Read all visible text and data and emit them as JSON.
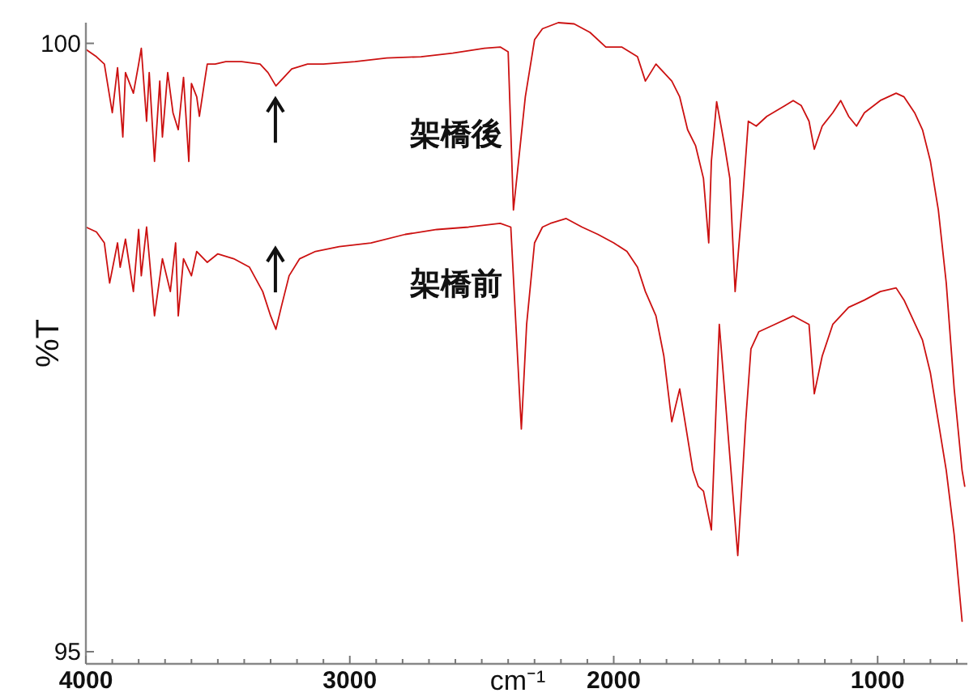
{
  "chart_data": {
    "type": "line",
    "xlabel": "cm⁻¹",
    "ylabel": "%T",
    "xlim": [
      4000,
      660
    ],
    "ylim": [
      94.9,
      100.17
    ],
    "xticks": [
      4000,
      {
        "value": 3900,
        "label": null
      },
      {
        "value": 3800,
        "label": null
      },
      {
        "value": 3700,
        "label": null
      },
      {
        "value": 3600,
        "label": null
      },
      {
        "value": 3500,
        "label": null
      },
      {
        "value": 3400,
        "label": null
      },
      {
        "value": 3300,
        "label": null
      },
      {
        "value": 3200,
        "label": null
      },
      {
        "value": 3100,
        "label": null
      },
      3000,
      {
        "value": 2900,
        "label": null
      },
      {
        "value": 2800,
        "label": null
      },
      {
        "value": 2700,
        "label": null
      },
      {
        "value": 2600,
        "label": null
      },
      {
        "value": 2500,
        "label": null
      },
      {
        "value": 2400,
        "label": null
      },
      {
        "value": 2300,
        "label": null
      },
      {
        "value": 2200,
        "label": null
      },
      {
        "value": 2100,
        "label": null
      },
      2000,
      {
        "value": 1900,
        "label": null
      },
      {
        "value": 1800,
        "label": null
      },
      {
        "value": 1700,
        "label": null
      },
      {
        "value": 1600,
        "label": null
      },
      {
        "value": 1500,
        "label": null
      },
      {
        "value": 1400,
        "label": null
      },
      {
        "value": 1300,
        "label": null
      },
      {
        "value": 1200,
        "label": null
      },
      {
        "value": 1100,
        "label": null
      },
      1000,
      {
        "value": 900,
        "label": null
      },
      {
        "value": 800,
        "label": null
      },
      {
        "value": 700,
        "label": null
      }
    ],
    "yticks": [
      95,
      100
    ],
    "grid": false,
    "legend": false,
    "marker": "none",
    "line_style": "solid",
    "series": [
      {
        "name": "架橋後",
        "color": "#cc1111",
        "x": [
          4000,
          3960,
          3930,
          3900,
          3880,
          3860,
          3850,
          3820,
          3800,
          3790,
          3770,
          3760,
          3740,
          3720,
          3710,
          3690,
          3670,
          3650,
          3630,
          3610,
          3600,
          3580,
          3570,
          3550,
          3540,
          3510,
          3470,
          3410,
          3340,
          3310,
          3280,
          3250,
          3220,
          3160,
          3100,
          2980,
          2860,
          2730,
          2610,
          2490,
          2430,
          2400,
          2380,
          2335,
          2300,
          2270,
          2210,
          2150,
          2090,
          2030,
          1970,
          1910,
          1880,
          1840,
          1780,
          1750,
          1720,
          1690,
          1660,
          1640,
          1630,
          1610,
          1580,
          1560,
          1540,
          1510,
          1490,
          1460,
          1420,
          1350,
          1320,
          1290,
          1260,
          1240,
          1210,
          1170,
          1140,
          1110,
          1080,
          1050,
          990,
          930,
          900,
          860,
          830,
          800,
          770,
          740,
          710,
          680,
          670
        ],
        "values": [
          99.95,
          99.89,
          99.83,
          99.43,
          99.8,
          99.23,
          99.76,
          99.59,
          99.83,
          99.96,
          99.36,
          99.76,
          99.03,
          99.69,
          99.23,
          99.76,
          99.43,
          99.29,
          99.72,
          99.03,
          99.67,
          99.56,
          99.4,
          99.69,
          99.83,
          99.83,
          99.85,
          99.85,
          99.83,
          99.76,
          99.65,
          99.72,
          99.79,
          99.83,
          99.83,
          99.85,
          99.88,
          99.89,
          99.92,
          99.96,
          99.97,
          99.93,
          98.63,
          99.56,
          100.03,
          100.12,
          100.17,
          100.16,
          100.09,
          99.97,
          99.97,
          99.89,
          99.69,
          99.83,
          99.69,
          99.56,
          99.29,
          99.16,
          98.89,
          98.36,
          99.03,
          99.52,
          99.16,
          98.89,
          97.96,
          98.76,
          99.36,
          99.32,
          99.4,
          99.49,
          99.53,
          99.49,
          99.36,
          99.13,
          99.32,
          99.43,
          99.53,
          99.4,
          99.32,
          99.43,
          99.53,
          99.59,
          99.56,
          99.43,
          99.29,
          99.03,
          98.63,
          98.03,
          97.16,
          96.49,
          96.36
        ]
      },
      {
        "name": "架橋前",
        "color": "#cc1111",
        "x": [
          4000,
          3960,
          3930,
          3910,
          3880,
          3870,
          3850,
          3820,
          3800,
          3790,
          3770,
          3740,
          3710,
          3680,
          3660,
          3650,
          3630,
          3600,
          3580,
          3540,
          3500,
          3440,
          3380,
          3330,
          3300,
          3280,
          3260,
          3230,
          3190,
          3130,
          3040,
          2920,
          2790,
          2670,
          2550,
          2430,
          2390,
          2350,
          2330,
          2300,
          2270,
          2240,
          2180,
          2120,
          2060,
          2000,
          1950,
          1910,
          1880,
          1840,
          1810,
          1780,
          1750,
          1700,
          1680,
          1660,
          1630,
          1600,
          1530,
          1500,
          1480,
          1450,
          1390,
          1320,
          1260,
          1240,
          1210,
          1170,
          1110,
          1050,
          990,
          930,
          900,
          830,
          800,
          770,
          740,
          710,
          680
        ],
        "values": [
          98.49,
          98.45,
          98.36,
          98.03,
          98.36,
          98.16,
          98.39,
          97.96,
          98.47,
          98.09,
          98.49,
          97.76,
          98.23,
          97.96,
          98.36,
          97.76,
          98.23,
          98.09,
          98.29,
          98.2,
          98.27,
          98.23,
          98.16,
          97.96,
          97.76,
          97.65,
          97.83,
          98.09,
          98.23,
          98.29,
          98.33,
          98.36,
          98.43,
          98.47,
          98.49,
          98.52,
          98.49,
          96.83,
          97.69,
          98.36,
          98.49,
          98.52,
          98.56,
          98.49,
          98.43,
          98.36,
          98.29,
          98.16,
          97.96,
          97.76,
          97.43,
          96.89,
          97.16,
          96.49,
          96.36,
          96.32,
          96.0,
          97.69,
          95.79,
          96.89,
          97.49,
          97.63,
          97.69,
          97.76,
          97.69,
          97.12,
          97.43,
          97.69,
          97.83,
          97.89,
          97.96,
          97.99,
          97.89,
          97.56,
          97.29,
          96.89,
          96.49,
          95.96,
          95.25
        ]
      }
    ]
  }
}
